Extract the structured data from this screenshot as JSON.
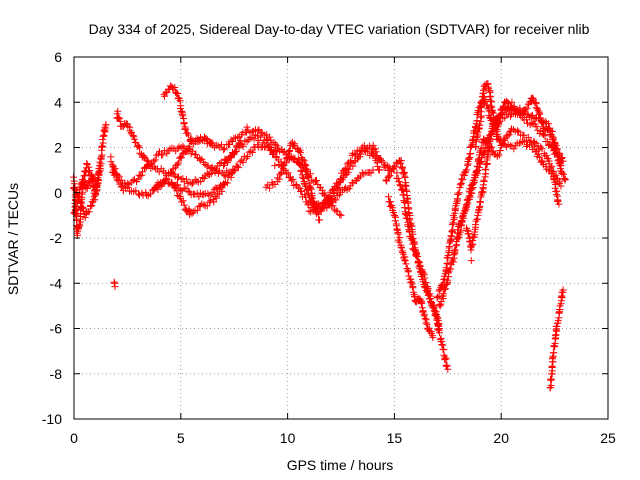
{
  "chart_data": {
    "type": "scatter",
    "title": "Day 334 of 2025, Sidereal Day-to-day VTEC variation (SDTVAR) for receiver nlib",
    "xlabel": "GPS time / hours",
    "ylabel": "SDTVAR / TECUs",
    "xlim": [
      0,
      25
    ],
    "ylim": [
      -10,
      6
    ],
    "xticks": [
      0,
      5,
      10,
      15,
      20,
      25
    ],
    "yticks": [
      -10,
      -8,
      -6,
      -4,
      -2,
      0,
      2,
      4,
      6
    ],
    "grid": true,
    "marker": "+",
    "series": [
      {
        "name": "SDTVAR",
        "color": "#ff0000",
        "tracks": [
          [
            [
              0,
              0.6
            ],
            [
              0.15,
              -1.8
            ],
            [
              0.3,
              -1.2
            ],
            [
              0.4,
              0.3
            ],
            [
              0.6,
              1.2
            ],
            [
              0.8,
              0.8
            ],
            [
              1.0,
              -0.2
            ],
            [
              1.2,
              1.0
            ],
            [
              1.4,
              2.7
            ],
            [
              1.5,
              3.0
            ]
          ],
          [
            [
              0,
              0.2
            ],
            [
              0.3,
              -0.4
            ],
            [
              0.5,
              -1.0
            ],
            [
              0.8,
              -0.6
            ],
            [
              1.0,
              0.0
            ],
            [
              1.1,
              0.4
            ],
            [
              1.2,
              1.2
            ]
          ],
          [
            [
              0,
              -1.0
            ],
            [
              0.2,
              -0.2
            ],
            [
              0.4,
              0.5
            ],
            [
              0.6,
              0.2
            ],
            [
              0.8,
              0.7
            ],
            [
              1.0,
              0.5
            ]
          ],
          [
            [
              2.0,
              3.5
            ],
            [
              2.2,
              3.0
            ],
            [
              2.5,
              3.0
            ],
            [
              3.0,
              2.0
            ],
            [
              3.5,
              1.2
            ],
            [
              4.0,
              1.0
            ],
            [
              4.5,
              0.8
            ],
            [
              5.0,
              0.6
            ],
            [
              5.5,
              0.4
            ],
            [
              6.0,
              0.6
            ],
            [
              6.5,
              1.0
            ],
            [
              7.0,
              1.3
            ],
            [
              7.5,
              1.8
            ],
            [
              7.8,
              2.3
            ]
          ],
          [
            [
              1.7,
              1.5
            ],
            [
              2.0,
              0.8
            ],
            [
              2.5,
              0.3
            ],
            [
              3.0,
              0.6
            ],
            [
              3.5,
              1.3
            ],
            [
              4.0,
              1.7
            ],
            [
              4.5,
              1.9
            ],
            [
              5.0,
              2.0
            ],
            [
              5.5,
              1.8
            ],
            [
              6.0,
              1.4
            ],
            [
              6.5,
              1.0
            ],
            [
              7.0,
              0.8
            ],
            [
              7.5,
              1.0
            ]
          ],
          [
            [
              1.8,
              0.9
            ],
            [
              2.3,
              0.2
            ],
            [
              3.0,
              0.0
            ],
            [
              3.5,
              -0.1
            ],
            [
              4.0,
              0.3
            ],
            [
              4.5,
              0.8
            ],
            [
              5.0,
              1.5
            ],
            [
              5.5,
              2.3
            ],
            [
              6.0,
              2.4
            ],
            [
              6.5,
              2.1
            ],
            [
              7.0,
              2.0
            ],
            [
              7.5,
              2.4
            ],
            [
              8.0,
              2.7
            ],
            [
              8.5,
              2.8
            ],
            [
              9.0,
              2.5
            ],
            [
              9.5,
              2.0
            ],
            [
              10.0,
              1.6
            ],
            [
              10.5,
              1.4
            ],
            [
              11.0,
              0.8
            ],
            [
              11.5,
              0.3
            ],
            [
              12.0,
              -0.5
            ],
            [
              12.5,
              -1.0
            ]
          ],
          [
            [
              4.2,
              4.3
            ],
            [
              4.5,
              4.7
            ],
            [
              4.8,
              4.5
            ],
            [
              5.0,
              3.8
            ],
            [
              5.2,
              2.8
            ],
            [
              5.5,
              2.2
            ],
            [
              6.0,
              2.4
            ],
            [
              6.5,
              2.2
            ]
          ],
          [
            [
              4.6,
              0.5
            ],
            [
              5.0,
              -0.3
            ],
            [
              5.3,
              -0.8
            ],
            [
              5.5,
              -0.9
            ],
            [
              6.0,
              -0.6
            ],
            [
              6.5,
              -0.4
            ],
            [
              7.0,
              0.3
            ],
            [
              7.5,
              1.0
            ],
            [
              8.0,
              1.5
            ],
            [
              8.5,
              2.0
            ],
            [
              9.0,
              2.1
            ],
            [
              9.5,
              1.8
            ]
          ],
          [
            [
              3.8,
              0.3
            ],
            [
              4.2,
              0.5
            ],
            [
              4.6,
              0.4
            ],
            [
              5.0,
              0.2
            ],
            [
              5.5,
              0.0
            ],
            [
              6.0,
              -0.1
            ],
            [
              6.5,
              0.0
            ],
            [
              7.0,
              0.4
            ]
          ],
          [
            [
              7.0,
              1.2
            ],
            [
              7.5,
              1.8
            ],
            [
              8.0,
              2.2
            ],
            [
              8.5,
              2.5
            ],
            [
              9.0,
              2.2
            ],
            [
              9.5,
              1.5
            ],
            [
              10.0,
              0.8
            ],
            [
              10.5,
              0.2
            ],
            [
              11.0,
              -0.5
            ],
            [
              11.5,
              -0.8
            ],
            [
              12.0,
              -0.3
            ],
            [
              12.5,
              0.5
            ],
            [
              13.0,
              1.2
            ],
            [
              13.5,
              1.8
            ],
            [
              14.0,
              1.7
            ],
            [
              14.3,
              1.0
            ]
          ],
          [
            [
              9.0,
              0.2
            ],
            [
              9.5,
              0.5
            ],
            [
              10.0,
              1.6
            ],
            [
              10.2,
              2.2
            ],
            [
              10.5,
              2.0
            ],
            [
              10.8,
              1.3
            ],
            [
              11.0,
              0.5
            ],
            [
              11.2,
              -0.5
            ],
            [
              11.5,
              -1.2
            ]
          ],
          [
            [
              10.0,
              1.5
            ],
            [
              10.5,
              1.4
            ],
            [
              11.0,
              -0.2
            ],
            [
              11.5,
              -0.7
            ],
            [
              12.0,
              -0.5
            ],
            [
              12.5,
              0.0
            ],
            [
              13.0,
              0.4
            ],
            [
              13.5,
              0.8
            ],
            [
              14.0,
              1.0
            ]
          ],
          [
            [
              11.0,
              -0.8
            ],
            [
              11.8,
              -0.4
            ],
            [
              12.5,
              0.7
            ],
            [
              13.0,
              1.6
            ],
            [
              13.5,
              2.0
            ],
            [
              14.0,
              2.0
            ],
            [
              14.5,
              1.2
            ],
            [
              14.8,
              1.0
            ]
          ],
          [
            [
              14.6,
              0.5
            ],
            [
              15.0,
              1.2
            ],
            [
              15.3,
              1.4
            ],
            [
              15.5,
              0.6
            ],
            [
              15.7,
              -1.0
            ],
            [
              16.0,
              -2.6
            ],
            [
              16.2,
              -3.2
            ],
            [
              16.5,
              -4.0
            ],
            [
              16.7,
              -4.8
            ],
            [
              16.9,
              -5.2
            ],
            [
              17.1,
              -6.2
            ],
            [
              17.3,
              -7.0
            ],
            [
              17.5,
              -7.8
            ]
          ],
          [
            [
              14.7,
              -0.2
            ],
            [
              15.0,
              -1.0
            ],
            [
              15.2,
              -2.0
            ],
            [
              15.5,
              -3.0
            ],
            [
              15.8,
              -4.0
            ],
            [
              16.0,
              -4.8
            ],
            [
              16.2,
              -4.6
            ],
            [
              16.4,
              -5.5
            ],
            [
              16.6,
              -6.0
            ],
            [
              16.8,
              -6.4
            ]
          ],
          [
            [
              15.1,
              0.8
            ],
            [
              15.4,
              0.0
            ],
            [
              15.6,
              -1.2
            ],
            [
              15.8,
              -2.2
            ],
            [
              16.1,
              -3.0
            ],
            [
              16.3,
              -3.8
            ],
            [
              16.6,
              -4.5
            ],
            [
              16.8,
              -5.0
            ],
            [
              17.0,
              -5.5
            ],
            [
              17.1,
              -6.0
            ]
          ],
          [
            [
              17.0,
              -4.6
            ],
            [
              17.2,
              -4.2
            ],
            [
              17.4,
              -3.5
            ],
            [
              17.6,
              -2.3
            ],
            [
              17.8,
              -1.0
            ],
            [
              18.0,
              0.0
            ],
            [
              18.2,
              0.6
            ],
            [
              18.4,
              1.2
            ],
            [
              18.6,
              2.0
            ],
            [
              18.8,
              3.0
            ],
            [
              19.0,
              3.8
            ],
            [
              19.2,
              4.2
            ],
            [
              19.4,
              3.6
            ],
            [
              19.6,
              3.0
            ],
            [
              19.8,
              2.5
            ],
            [
              20.0,
              2.2
            ],
            [
              20.5,
              2.0
            ],
            [
              21.0,
              2.2
            ],
            [
              21.5,
              2.0
            ],
            [
              22.0,
              1.2
            ],
            [
              22.5,
              0.8
            ],
            [
              22.8,
              0.3
            ]
          ],
          [
            [
              17.1,
              -5.0
            ],
            [
              17.3,
              -4.5
            ],
            [
              17.5,
              -3.8
            ],
            [
              17.8,
              -2.8
            ],
            [
              18.0,
              -1.6
            ],
            [
              18.2,
              -1.0
            ],
            [
              18.5,
              -0.3
            ],
            [
              18.7,
              0.4
            ],
            [
              19.0,
              1.2
            ],
            [
              19.3,
              2.2
            ],
            [
              19.6,
              2.8
            ],
            [
              20.0,
              3.2
            ],
            [
              20.5,
              3.5
            ],
            [
              21.0,
              3.3
            ],
            [
              21.5,
              3.0
            ],
            [
              22.0,
              2.5
            ],
            [
              22.5,
              1.8
            ],
            [
              22.8,
              1.2
            ]
          ],
          [
            [
              18.4,
              -1.5
            ],
            [
              18.6,
              -2.5
            ],
            [
              18.8,
              -1.5
            ],
            [
              19.0,
              -0.5
            ],
            [
              19.2,
              0.5
            ],
            [
              19.4,
              1.8
            ],
            [
              19.6,
              3.0
            ],
            [
              19.8,
              3.3
            ],
            [
              20.2,
              3.6
            ],
            [
              20.6,
              3.8
            ],
            [
              21.0,
              3.6
            ],
            [
              21.4,
              3.4
            ],
            [
              21.8,
              3.2
            ],
            [
              22.2,
              3.0
            ],
            [
              22.6,
              2.0
            ],
            [
              22.9,
              1.4
            ]
          ],
          [
            [
              18.8,
              2.0
            ],
            [
              19.0,
              3.0
            ],
            [
              19.2,
              4.6
            ],
            [
              19.4,
              4.8
            ],
            [
              19.6,
              3.5
            ],
            [
              19.8,
              2.8
            ],
            [
              20.0,
              3.6
            ],
            [
              20.2,
              4.0
            ],
            [
              20.5,
              3.8
            ],
            [
              21.0,
              3.4
            ],
            [
              21.3,
              3.9
            ],
            [
              21.5,
              4.2
            ],
            [
              21.7,
              3.8
            ],
            [
              22.0,
              2.8
            ],
            [
              22.4,
              2.6
            ],
            [
              22.8,
              1.0
            ],
            [
              23.0,
              0.6
            ]
          ],
          [
            [
              18.0,
              -2.0
            ],
            [
              18.3,
              -0.8
            ],
            [
              18.5,
              0.0
            ],
            [
              18.8,
              0.8
            ],
            [
              19.0,
              1.8
            ],
            [
              19.2,
              2.4
            ],
            [
              19.5,
              2.0
            ],
            [
              19.8,
              1.6
            ],
            [
              20.2,
              2.4
            ],
            [
              20.5,
              2.8
            ],
            [
              21.0,
              2.5
            ],
            [
              21.5,
              2.2
            ],
            [
              22.0,
              1.8
            ],
            [
              22.4,
              1.0
            ],
            [
              22.7,
              -0.5
            ]
          ],
          [
            [
              22.3,
              -8.6
            ],
            [
              22.4,
              -7.6
            ],
            [
              22.5,
              -6.6
            ],
            [
              22.6,
              -6.0
            ],
            [
              22.7,
              -5.4
            ],
            [
              22.8,
              -4.8
            ],
            [
              22.9,
              -4.3
            ]
          ]
        ],
        "points": [
          [
            1.9,
            -4.0
          ],
          [
            1.92,
            -4.15
          ],
          [
            1.88,
            -3.95
          ],
          [
            2.05,
            3.6
          ],
          [
            8.1,
            2.9
          ],
          [
            9.4,
            1.2
          ],
          [
            18.6,
            -3.0
          ],
          [
            20.5,
            4.0
          ],
          [
            22.4,
            2.0
          ]
        ]
      }
    ]
  }
}
